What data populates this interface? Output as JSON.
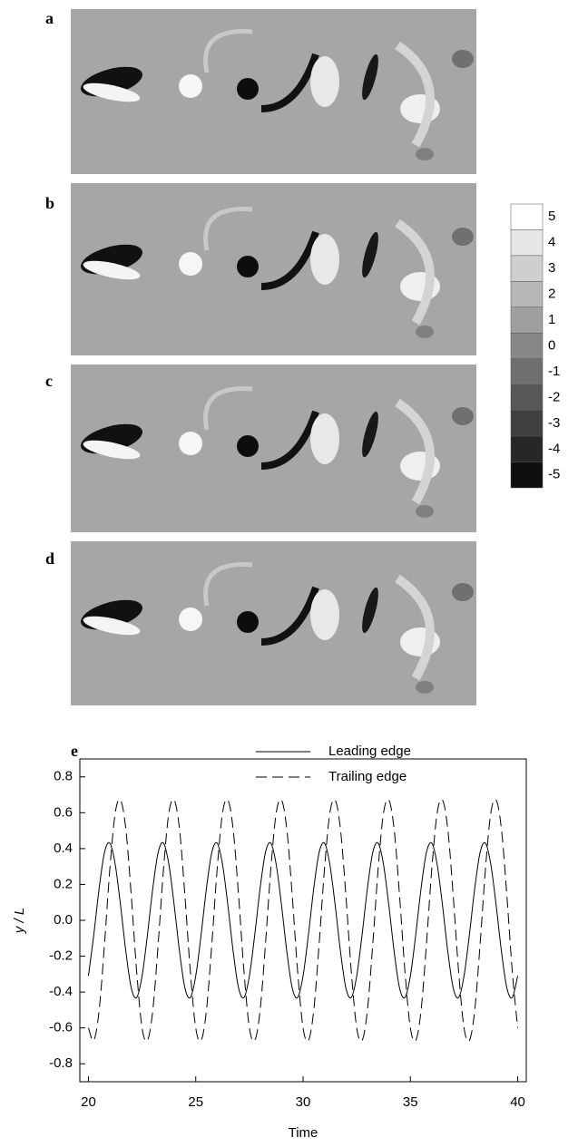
{
  "panels": [
    {
      "label": "a"
    },
    {
      "label": "b"
    },
    {
      "label": "c"
    },
    {
      "label": "d"
    }
  ],
  "colorbar": {
    "levels": [
      5,
      4,
      3,
      2,
      1,
      0,
      -1,
      -2,
      -3,
      -4,
      -5
    ]
  },
  "chart_data": {
    "type": "line",
    "label": "e",
    "xlabel": "Time",
    "ylabel": "y / L",
    "xlim": [
      19.6,
      40.4
    ],
    "xticks": [
      20,
      25,
      30,
      35,
      40
    ],
    "ylim": [
      -0.9,
      0.9
    ],
    "yticks": [
      {
        "value": 0.8,
        "label": "0.8"
      },
      {
        "value": 0.6,
        "label": "0.6"
      },
      {
        "value": 0.4,
        "label": "0.4"
      },
      {
        "value": 0.2,
        "label": "0.2"
      },
      {
        "value": 0,
        "label": "0.0"
      },
      {
        "value": -0.2,
        "label": "-0.2"
      },
      {
        "value": -0.4,
        "label": "-0.4"
      },
      {
        "value": -0.6,
        "label": "-0.6"
      },
      {
        "value": -0.8,
        "label": "-0.8"
      }
    ],
    "x": [
      20,
      20.25,
      20.5,
      20.75,
      21,
      21.25,
      21.5,
      21.75,
      22,
      22.25,
      22.5,
      22.75,
      23,
      23.25,
      23.5,
      23.75,
      24,
      24.25,
      24.5,
      24.75,
      25,
      25.25,
      25.5,
      25.75,
      26,
      26.25,
      26.5,
      26.75,
      27,
      27.25,
      27.5,
      27.75,
      28,
      28.25,
      28.5,
      28.75,
      29,
      29.25,
      29.5,
      29.75,
      30,
      30.25,
      30.5,
      30.75,
      31,
      31.25,
      31.5,
      31.75,
      32,
      32.25,
      32.5,
      32.75,
      33,
      33.25,
      33.5,
      33.75,
      34,
      34.25,
      34.5,
      34.75,
      35,
      35.25,
      35.5,
      35.75,
      36,
      36.25,
      36.5,
      36.75,
      37,
      37.25,
      37.5,
      37.75,
      38,
      38.25,
      38.5,
      38.75,
      39,
      39.25,
      39.5,
      39.75,
      40
    ],
    "series": [
      {
        "name": "Leading edge",
        "dash": "solid",
        "color": "#000000",
        "values": [
          -0.31,
          -0.08,
          0.18,
          0.38,
          0.43,
          0.31,
          0.08,
          -0.18,
          -0.38,
          -0.43,
          -0.31,
          -0.08,
          0.18,
          0.38,
          0.43,
          0.31,
          0.08,
          -0.18,
          -0.38,
          -0.43,
          -0.31,
          -0.08,
          0.18,
          0.38,
          0.43,
          0.31,
          0.08,
          -0.18,
          -0.38,
          -0.43,
          -0.31,
          -0.08,
          0.18,
          0.38,
          0.43,
          0.31,
          0.08,
          -0.18,
          -0.38,
          -0.43,
          -0.31,
          -0.08,
          0.18,
          0.38,
          0.43,
          0.31,
          0.08,
          -0.18,
          -0.38,
          -0.43,
          -0.31,
          -0.08,
          0.18,
          0.38,
          0.43,
          0.31,
          0.08,
          -0.18,
          -0.38,
          -0.43,
          -0.31,
          -0.08,
          0.18,
          0.38,
          0.43,
          0.31,
          0.08,
          -0.18,
          -0.38,
          -0.43,
          -0.31,
          -0.08,
          0.18,
          0.38,
          0.43,
          0.31,
          0.08,
          -0.18,
          -0.38,
          -0.43,
          -0.31
        ]
      },
      {
        "name": "Trailing edge",
        "dash": "dashed",
        "color": "#000000",
        "values": [
          -0.6,
          -0.67,
          -0.5,
          -0.13,
          0.29,
          0.6,
          0.67,
          0.5,
          0.13,
          -0.29,
          -0.6,
          -0.67,
          -0.5,
          -0.13,
          0.29,
          0.6,
          0.67,
          0.5,
          0.13,
          -0.29,
          -0.6,
          -0.67,
          -0.5,
          -0.13,
          0.29,
          0.6,
          0.67,
          0.5,
          0.13,
          -0.29,
          -0.6,
          -0.67,
          -0.5,
          -0.13,
          0.29,
          0.6,
          0.67,
          0.5,
          0.13,
          -0.29,
          -0.6,
          -0.67,
          -0.5,
          -0.13,
          0.29,
          0.6,
          0.67,
          0.5,
          0.13,
          -0.29,
          -0.6,
          -0.67,
          -0.5,
          -0.13,
          0.29,
          0.6,
          0.67,
          0.5,
          0.13,
          -0.29,
          -0.6,
          -0.67,
          -0.5,
          -0.13,
          0.29,
          0.6,
          0.67,
          0.5,
          0.13,
          -0.29,
          -0.6,
          -0.67,
          -0.5,
          -0.13,
          0.29,
          0.6,
          0.67,
          0.5,
          0.13,
          -0.29,
          -0.6
        ]
      }
    ]
  }
}
